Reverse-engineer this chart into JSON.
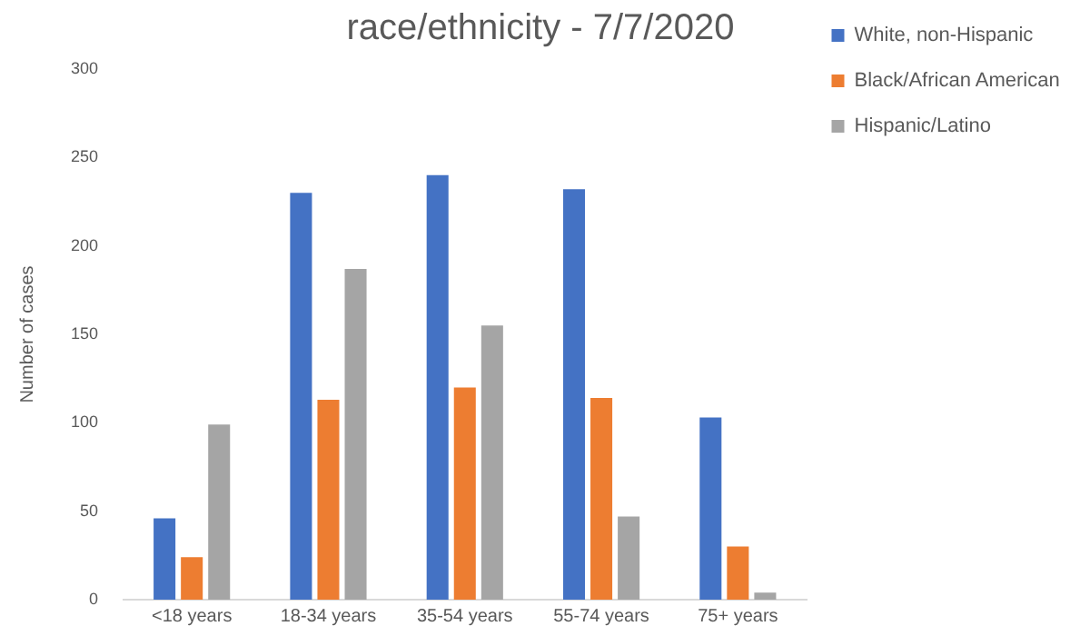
{
  "chart_data": {
    "type": "bar",
    "title": "race/ethnicity - 7/7/2020",
    "ylabel": "Number of cases",
    "categories": [
      "<18 years",
      "18-34 years",
      "35-54 years",
      "55-74 years",
      "75+ years"
    ],
    "series": [
      {
        "name": "White, non-Hispanic",
        "color": "#4472c4",
        "values": [
          46,
          230,
          240,
          232,
          103
        ]
      },
      {
        "name": "Black/African American",
        "color": "#ed7d31",
        "values": [
          24,
          113,
          120,
          114,
          30
        ]
      },
      {
        "name": "Hispanic/Latino",
        "color": "#a5a5a5",
        "values": [
          99,
          187,
          155,
          47,
          4
        ]
      }
    ],
    "ylim": [
      0,
      300
    ],
    "yticks": [
      0,
      50,
      100,
      150,
      200,
      250,
      300
    ],
    "grid": false,
    "legend": "right"
  }
}
